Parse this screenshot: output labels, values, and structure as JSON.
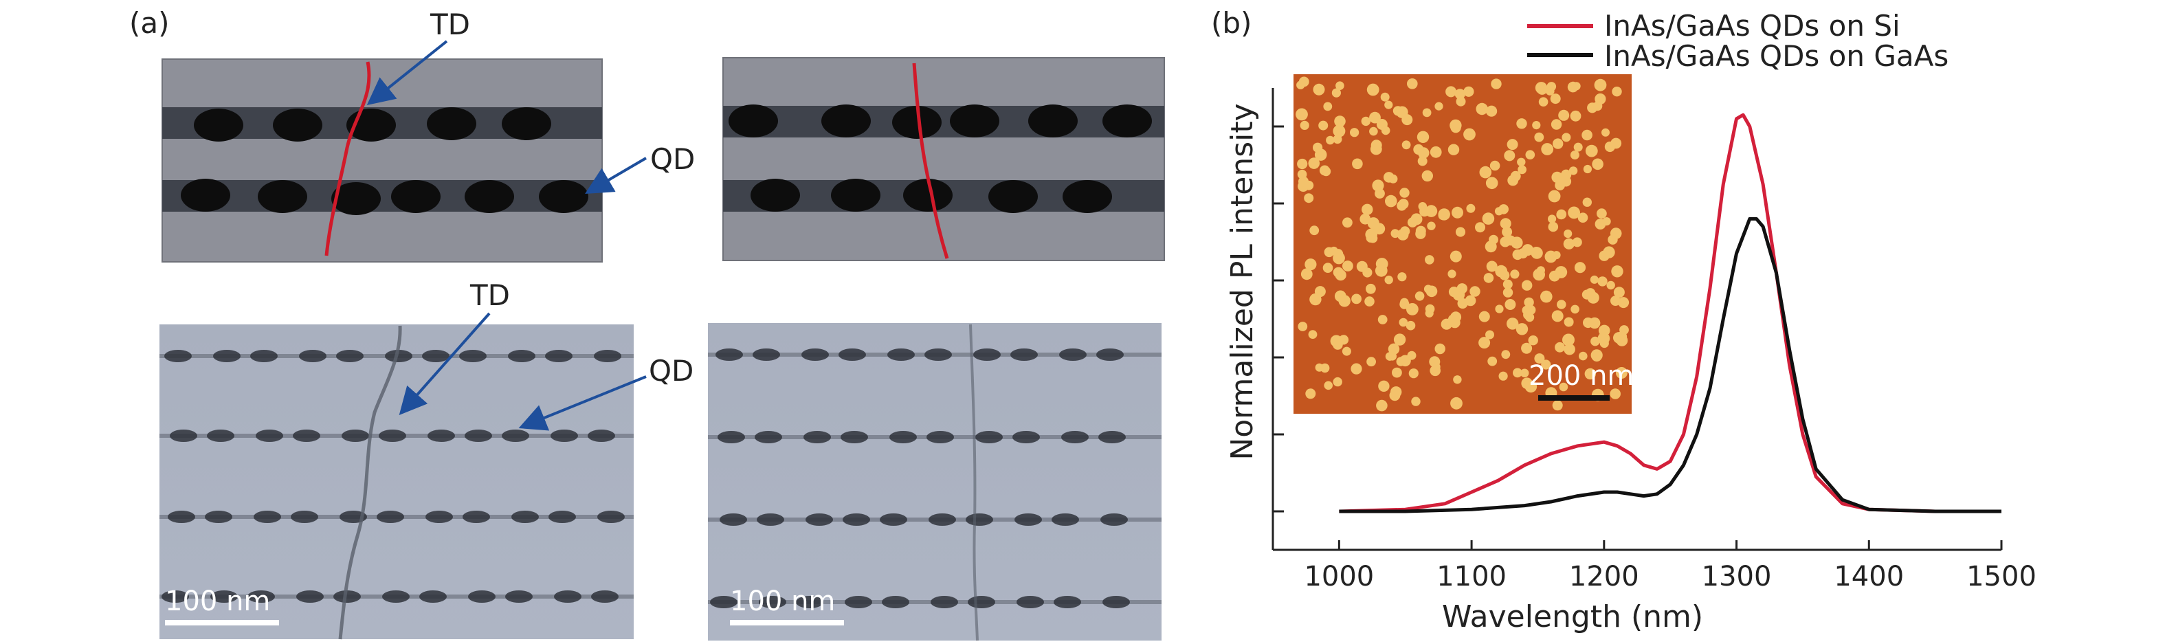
{
  "panel_a": {
    "label": "(a)",
    "schematic_labels": {
      "td": "TD",
      "qd": "QD"
    },
    "tem_labels": {
      "td": "TD",
      "qd": "QD"
    },
    "scalebars": [
      "100 nm",
      "100 nm"
    ]
  },
  "panel_b": {
    "label": "(b)",
    "inset_scalebar": "200 nm"
  },
  "colors": {
    "gaas": "#8e9099",
    "qd_layer": "#3f434c",
    "dot": "#0d0d0d",
    "dislocation": "#d11a2a",
    "arrow": "#1e4f9c",
    "afm_bg": "#c4561f",
    "afm_dot": "#f3c26b",
    "si_line": "#d3203a",
    "gaas_line": "#111111"
  },
  "chart_data": {
    "type": "line",
    "xlabel": "Wavelength (nm)",
    "ylabel": "Normalized PL intensity",
    "xlim": [
      950,
      1500
    ],
    "ylim": [
      -0.1,
      1.1
    ],
    "xticks": [
      1000,
      1100,
      1200,
      1300,
      1400,
      1500
    ],
    "y_ticks_unlabeled": [
      0,
      0.2,
      0.4,
      0.6,
      0.8,
      1.0
    ],
    "legend_position": "top-right",
    "series": [
      {
        "name": "InAs/GaAs QDs on Si",
        "color": "#d3203a",
        "x": [
          1000,
          1050,
          1080,
          1100,
          1120,
          1140,
          1160,
          1180,
          1200,
          1210,
          1220,
          1230,
          1240,
          1250,
          1260,
          1270,
          1280,
          1290,
          1300,
          1305,
          1310,
          1320,
          1330,
          1340,
          1350,
          1360,
          1380,
          1400,
          1450,
          1500
        ],
        "y": [
          0.0,
          0.005,
          0.02,
          0.05,
          0.08,
          0.12,
          0.15,
          0.17,
          0.18,
          0.17,
          0.15,
          0.12,
          0.11,
          0.13,
          0.2,
          0.35,
          0.58,
          0.85,
          1.02,
          1.03,
          1.0,
          0.85,
          0.62,
          0.38,
          0.2,
          0.09,
          0.02,
          0.005,
          0.0,
          0.0
        ]
      },
      {
        "name": "InAs/GaAs QDs on GaAs",
        "color": "#111111",
        "x": [
          1000,
          1050,
          1100,
          1140,
          1160,
          1180,
          1200,
          1210,
          1220,
          1230,
          1240,
          1250,
          1260,
          1270,
          1280,
          1290,
          1300,
          1310,
          1315,
          1320,
          1330,
          1340,
          1350,
          1360,
          1380,
          1400,
          1450,
          1500
        ],
        "y": [
          0.0,
          0.0,
          0.005,
          0.015,
          0.025,
          0.04,
          0.05,
          0.05,
          0.045,
          0.04,
          0.045,
          0.07,
          0.12,
          0.2,
          0.32,
          0.5,
          0.67,
          0.76,
          0.76,
          0.74,
          0.62,
          0.42,
          0.24,
          0.11,
          0.03,
          0.005,
          0.0,
          0.0
        ]
      }
    ]
  }
}
